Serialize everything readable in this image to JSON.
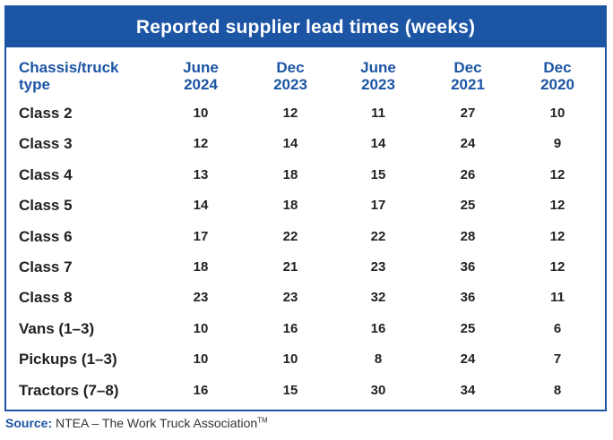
{
  "chart_data": {
    "type": "table",
    "title": "Reported supplier lead times (weeks)",
    "row_header": [
      "Chassis/truck",
      "type"
    ],
    "columns": [
      [
        "June",
        "2024"
      ],
      [
        "Dec",
        "2023"
      ],
      [
        "June",
        "2023"
      ],
      [
        "Dec",
        "2021"
      ],
      [
        "Dec",
        "2020"
      ]
    ],
    "rows": [
      {
        "label": "Class 2",
        "values": [
          10,
          12,
          11,
          27,
          10
        ]
      },
      {
        "label": "Class 3",
        "values": [
          12,
          14,
          14,
          24,
          9
        ]
      },
      {
        "label": "Class 4",
        "values": [
          13,
          18,
          15,
          26,
          12
        ]
      },
      {
        "label": "Class 5",
        "values": [
          14,
          18,
          17,
          25,
          12
        ]
      },
      {
        "label": "Class 6",
        "values": [
          17,
          22,
          22,
          28,
          12
        ]
      },
      {
        "label": "Class 7",
        "values": [
          18,
          21,
          23,
          36,
          12
        ]
      },
      {
        "label": "Class 8",
        "values": [
          23,
          23,
          32,
          36,
          11
        ]
      },
      {
        "label": "Vans (1–3)",
        "values": [
          10,
          16,
          16,
          25,
          6
        ]
      },
      {
        "label": "Pickups (1–3)",
        "values": [
          10,
          10,
          8,
          24,
          7
        ]
      },
      {
        "label": "Tractors (7–8)",
        "values": [
          16,
          15,
          30,
          34,
          8
        ]
      }
    ]
  },
  "source": {
    "label": "Source:",
    "text": " NTEA – The Work Truck Association",
    "trademark": "TM"
  },
  "colors": {
    "header_blue": "#1c55a4",
    "text": "#222222"
  }
}
